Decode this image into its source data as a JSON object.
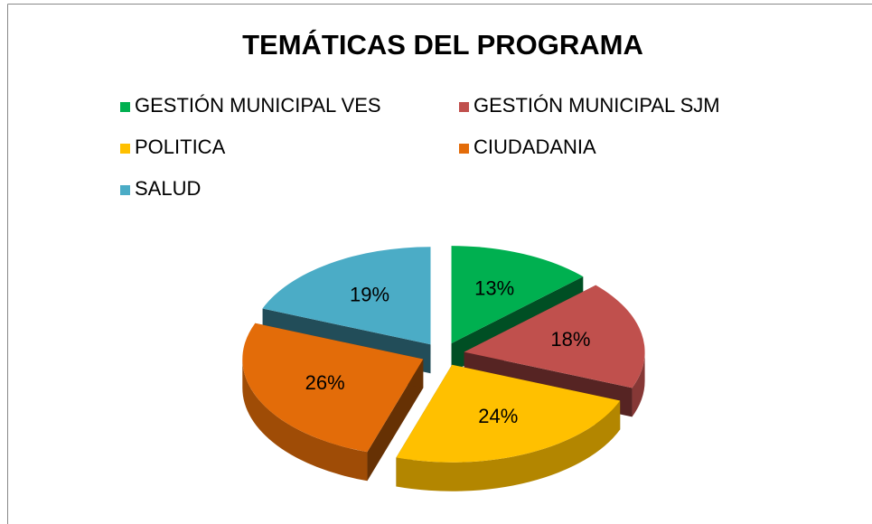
{
  "chart_data": {
    "type": "pie",
    "title": "TEMÁTICAS DEL PROGRAMA",
    "categories": [
      "GESTIÓN MUNICIPAL VES",
      "GESTIÓN MUNICIPAL SJM",
      "POLITICA",
      "CIUDADANIA",
      "SALUD"
    ],
    "values": [
      13,
      18,
      24,
      26,
      19
    ],
    "value_labels": [
      "13%",
      "18%",
      "24%",
      "26%",
      "19%"
    ],
    "colors": [
      "#00b050",
      "#c0504d",
      "#ffc000",
      "#e36c09",
      "#4bacc6"
    ],
    "legend": "top"
  }
}
